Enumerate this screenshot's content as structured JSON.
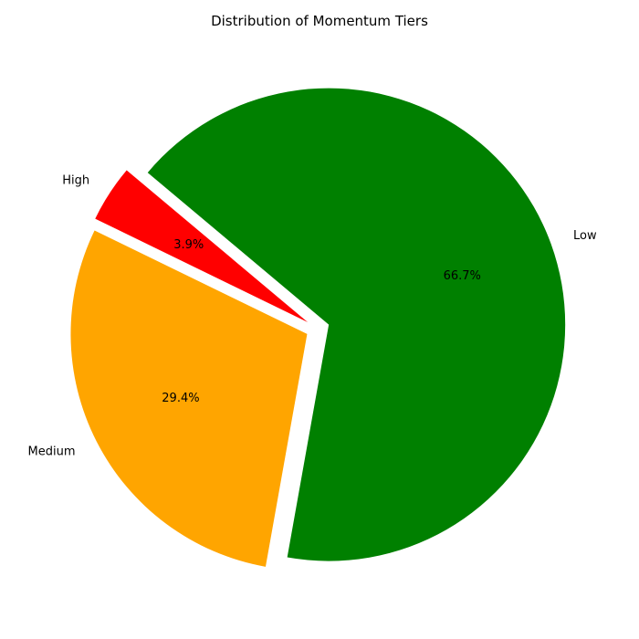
{
  "chart_data": {
    "type": "pie",
    "title": "Distribution of Momentum Tiers",
    "start_angle_deg": 140,
    "direction": "counterclockwise",
    "slices": [
      {
        "label": "High",
        "value": 3.9,
        "pct_label": "3.9%",
        "color": "#ff0000",
        "exploded": true
      },
      {
        "label": "Medium",
        "value": 29.4,
        "pct_label": "29.4%",
        "color": "#ffa500",
        "exploded": true
      },
      {
        "label": "Low",
        "value": 66.7,
        "pct_label": "66.7%",
        "color": "#008000",
        "exploded": true
      }
    ]
  }
}
